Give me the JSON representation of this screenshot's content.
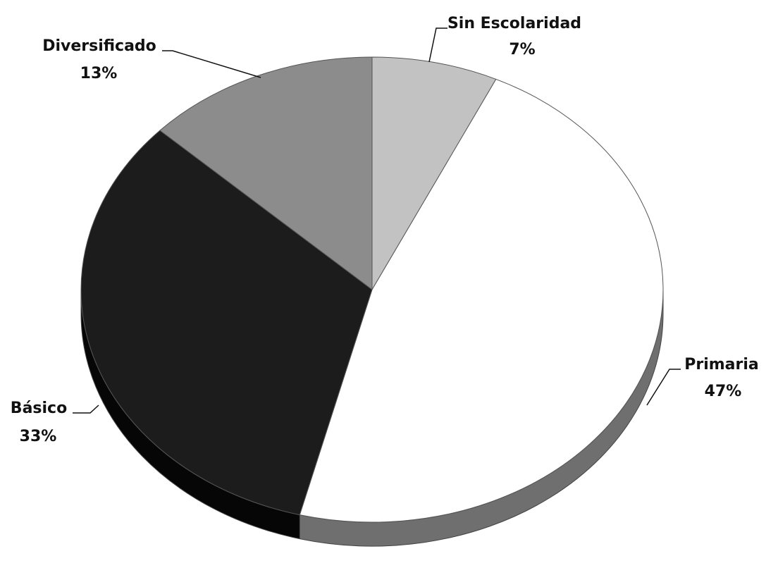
{
  "chart_data": {
    "type": "pie",
    "style": "3d",
    "legend": "none",
    "slices": [
      {
        "label": "Sin Escolaridad",
        "value": 7,
        "value_label": "7%",
        "color": "#c2c2c2",
        "side_color": "#8a8a8a"
      },
      {
        "label": "Primaria",
        "value": 47,
        "value_label": "47%",
        "color": "#ffffff",
        "side_color": "#6f6f6f"
      },
      {
        "label": "Básico",
        "value": 33,
        "value_label": "33%",
        "color": "#1c1c1c",
        "side_color": "#060606"
      },
      {
        "label": "Diversificado",
        "value": 13,
        "value_label": "13%",
        "color": "#8c8c8c",
        "side_color": "#5a5a5a"
      }
    ]
  }
}
